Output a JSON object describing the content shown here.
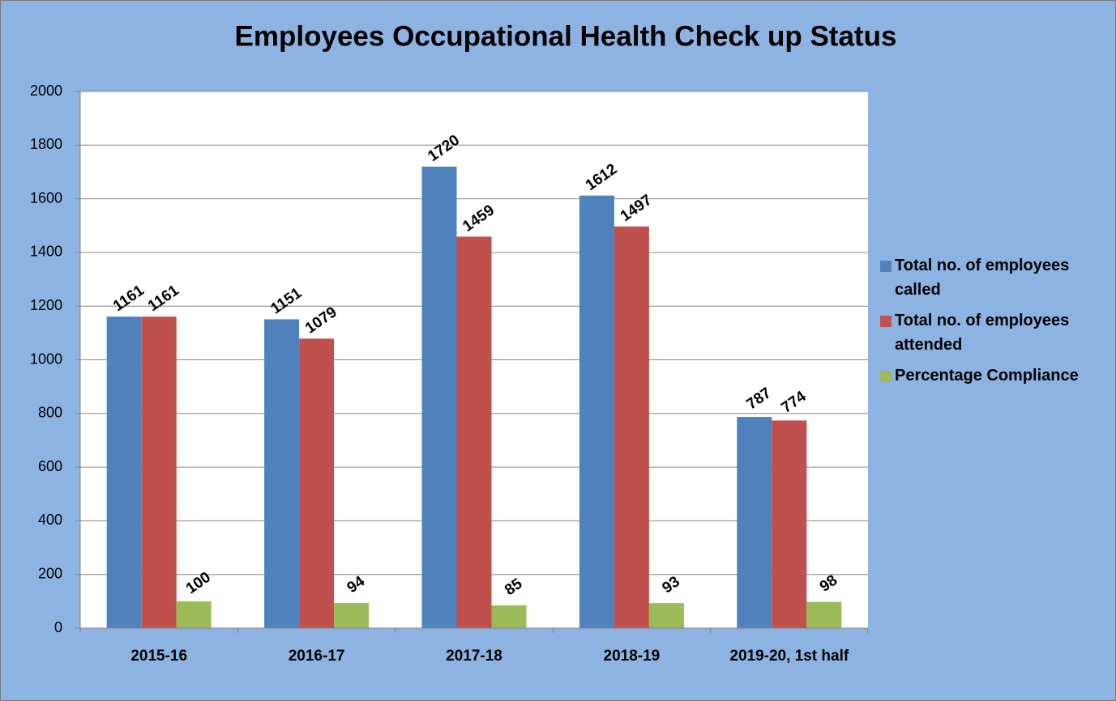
{
  "chart_data": {
    "type": "bar",
    "title": "Employees Occupational Health Check up Status",
    "categories": [
      "2015-16",
      "2016-17",
      "2017-18",
      "2018-19",
      "2019-20,  1st half"
    ],
    "series": [
      {
        "name": "Total no. of employees called",
        "color": "#4F81BD",
        "values": [
          1161,
          1151,
          1720,
          1612,
          787
        ]
      },
      {
        "name": "Total no. of employees attended",
        "color": "#C0504D",
        "values": [
          1161,
          1079,
          1459,
          1497,
          774
        ]
      },
      {
        "name": "Percentage Compliance",
        "color": "#9BBB59",
        "values": [
          100,
          94,
          85,
          93,
          98
        ]
      }
    ],
    "ylim": [
      0,
      2000
    ],
    "yticks": [
      0,
      200,
      400,
      600,
      800,
      1000,
      1200,
      1400,
      1600,
      1800,
      2000
    ],
    "grid": true,
    "legend": "right"
  }
}
